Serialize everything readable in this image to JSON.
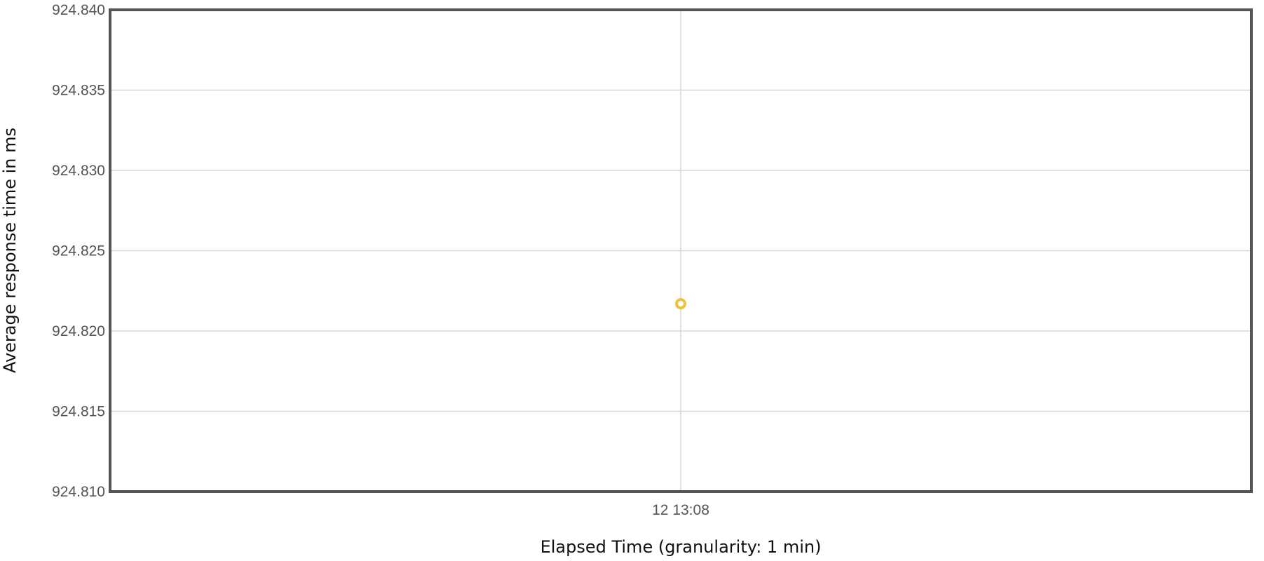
{
  "chart_data": {
    "type": "scatter",
    "xlabel": "Elapsed Time (granularity: 1 min)",
    "ylabel": "Average response time in ms",
    "x_ticks": [
      "12 13:08"
    ],
    "y_ticks": [
      "924.810",
      "924.815",
      "924.820",
      "924.825",
      "924.830",
      "924.835",
      "924.840"
    ],
    "ylim": [
      924.81,
      924.84
    ],
    "grid": true,
    "series": [
      {
        "color": "#edc240",
        "points": [
          {
            "x": "12 13:08",
            "y": 924.8217
          }
        ]
      }
    ]
  }
}
